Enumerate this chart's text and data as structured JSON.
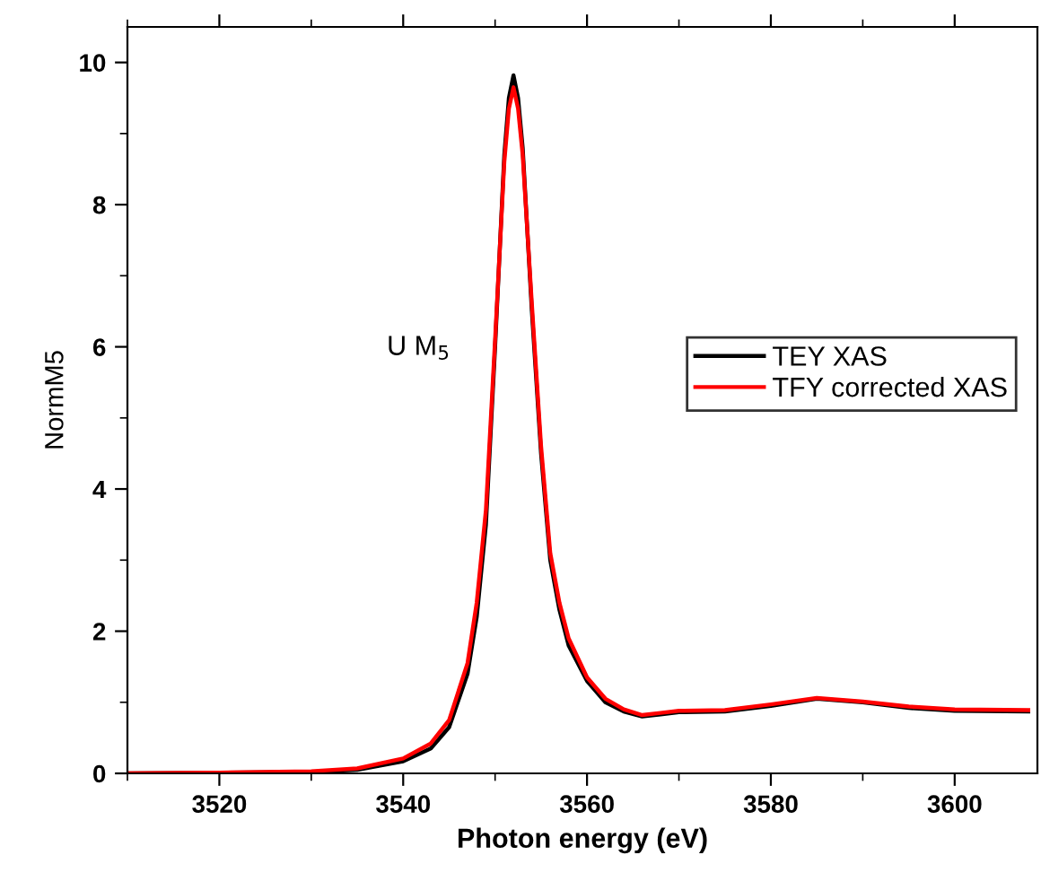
{
  "chart_data": {
    "type": "line",
    "xlabel": "Photon energy (eV)",
    "ylabel": "NormM5",
    "xlim": [
      3510,
      3609
    ],
    "ylim": [
      0,
      10.5
    ],
    "xticks": [
      3520,
      3540,
      3560,
      3580,
      3600
    ],
    "yticks": [
      0,
      2,
      4,
      6,
      8,
      10
    ],
    "legend": "right",
    "grid": false,
    "marker": "none",
    "line_style": "solid",
    "annotations": [
      "U M$_{5}$"
    ],
    "series": [
      {
        "name": "TEY XAS",
        "color": "#000000",
        "x": [
          3510,
          3520,
          3530,
          3535,
          3540,
          3543,
          3545,
          3547,
          3548,
          3549,
          3550,
          3551,
          3551.5,
          3552,
          3552.5,
          3553,
          3554,
          3555,
          3556,
          3557,
          3558,
          3560,
          3562,
          3564,
          3566,
          3568,
          3570,
          3575,
          3580,
          3585,
          3590,
          3595,
          3600,
          3608
        ],
        "values": [
          0,
          0.01,
          0.02,
          0.05,
          0.17,
          0.35,
          0.65,
          1.4,
          2.2,
          3.5,
          6.0,
          8.7,
          9.5,
          9.82,
          9.5,
          8.8,
          6.5,
          4.5,
          3.0,
          2.3,
          1.8,
          1.3,
          1.0,
          0.87,
          0.8,
          0.83,
          0.86,
          0.87,
          0.95,
          1.05,
          1.0,
          0.92,
          0.88,
          0.87
        ]
      },
      {
        "name": "TFY corrected XAS",
        "color": "#ff0000",
        "x": [
          3510,
          3520,
          3530,
          3535,
          3540,
          3543,
          3545,
          3547,
          3548,
          3549,
          3550,
          3551,
          3551.5,
          3552,
          3552.5,
          3553,
          3554,
          3555,
          3556,
          3557,
          3558,
          3560,
          3562,
          3564,
          3566,
          3568,
          3570,
          3575,
          3580,
          3585,
          3590,
          3595,
          3600,
          3608
        ],
        "values": [
          0,
          0.01,
          0.03,
          0.07,
          0.21,
          0.42,
          0.75,
          1.55,
          2.4,
          3.7,
          6.1,
          8.6,
          9.35,
          9.65,
          9.35,
          8.7,
          6.6,
          4.6,
          3.1,
          2.4,
          1.9,
          1.35,
          1.05,
          0.9,
          0.82,
          0.85,
          0.88,
          0.89,
          0.97,
          1.06,
          1.01,
          0.94,
          0.9,
          0.89
        ]
      }
    ]
  }
}
